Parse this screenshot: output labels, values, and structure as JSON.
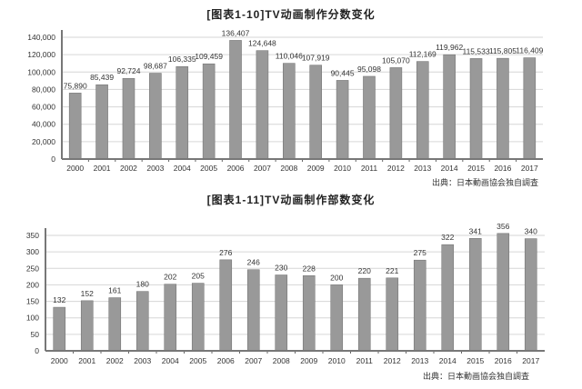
{
  "chart_data": [
    {
      "type": "bar",
      "title": "[图表1-10]TV动画制作分数变化",
      "xlabel": "",
      "ylabel": "",
      "ylim": [
        0,
        140000
      ],
      "yticks": [
        0,
        20000,
        40000,
        60000,
        80000,
        100000,
        120000,
        140000
      ],
      "ytick_labels": [
        "0",
        "20,000",
        "40,000",
        "60,000",
        "80,000",
        "100,000",
        "120,000",
        "140,000"
      ],
      "grid": true,
      "categories": [
        "2000",
        "2001",
        "2002",
        "2003",
        "2004",
        "2005",
        "2006",
        "2007",
        "2008",
        "2009",
        "2010",
        "2011",
        "2012",
        "2013",
        "2014",
        "2015",
        "2016",
        "2017"
      ],
      "values": [
        75890,
        85439,
        92724,
        98687,
        106335,
        109459,
        136407,
        124648,
        110046,
        107919,
        90445,
        95098,
        105070,
        112169,
        119962,
        115533,
        115805,
        116409
      ],
      "value_labels": [
        "75,890",
        "85,439",
        "92,724",
        "98,687",
        "106,335",
        "109,459",
        "136,407",
        "124,648",
        "110,046",
        "107,919",
        "90,445",
        "95,098",
        "105,070",
        "112,169",
        "119,962",
        "115,533",
        "115,805",
        "116,409"
      ],
      "source": "出典：日本動画協会独自調査",
      "bar_color": "#999999"
    },
    {
      "type": "bar",
      "title": "[图表1-11]TV动画制作部数变化",
      "xlabel": "",
      "ylabel": "",
      "ylim": [
        0,
        350
      ],
      "yticks": [
        0,
        50,
        100,
        150,
        200,
        250,
        300,
        350
      ],
      "ytick_labels": [
        "0",
        "50",
        "100",
        "150",
        "200",
        "250",
        "300",
        "350"
      ],
      "grid": true,
      "categories": [
        "2000",
        "2001",
        "2002",
        "2003",
        "2004",
        "2005",
        "2006",
        "2007",
        "2008",
        "2009",
        "2010",
        "2011",
        "2012",
        "2013",
        "2014",
        "2015",
        "2016",
        "2017"
      ],
      "values": [
        132,
        152,
        161,
        180,
        202,
        205,
        276,
        246,
        230,
        228,
        200,
        220,
        221,
        275,
        322,
        341,
        356,
        340
      ],
      "value_labels": [
        "132",
        "152",
        "161",
        "180",
        "202",
        "205",
        "276",
        "246",
        "230",
        "228",
        "200",
        "220",
        "221",
        "275",
        "322",
        "341",
        "356",
        "340"
      ],
      "source": "出典：日本動画協会独自調査",
      "bar_color": "#999999"
    }
  ]
}
